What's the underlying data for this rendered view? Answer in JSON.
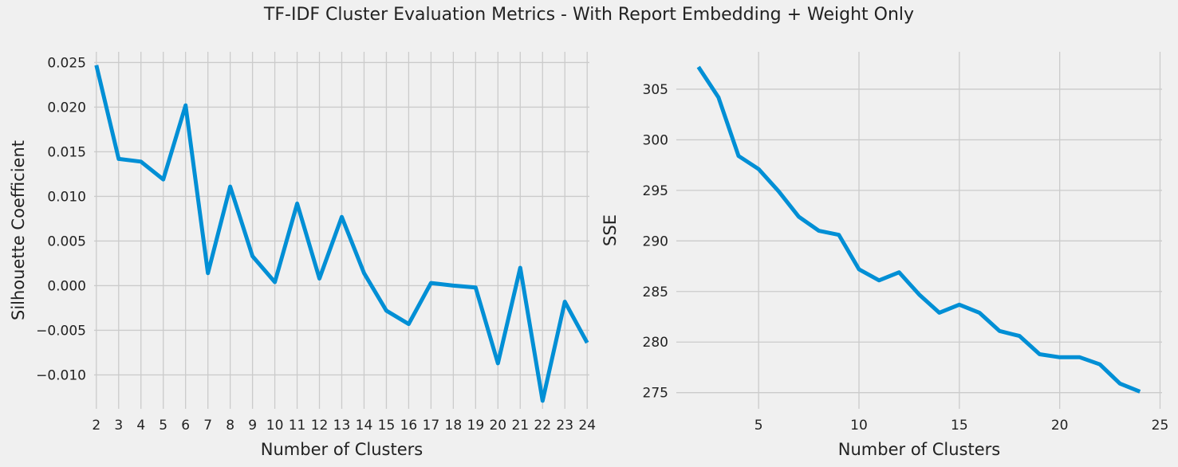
{
  "figure_title": "TF-IDF Cluster Evaluation Metrics - With Report Embedding + Weight Only",
  "colors": {
    "background": "#f0f0f0",
    "grid": "#cbcbcb",
    "line": "#008fd5",
    "text": "#222222"
  },
  "chart_data": [
    {
      "type": "line",
      "title": "",
      "xlabel": "Number of Clusters",
      "ylabel": "Silhouette Coefficient",
      "xlim": [
        1.9,
        24.1
      ],
      "ylim": [
        -0.0138,
        0.0262
      ],
      "x_ticks": [
        2,
        3,
        4,
        5,
        6,
        7,
        8,
        9,
        10,
        11,
        12,
        13,
        14,
        15,
        16,
        17,
        18,
        19,
        20,
        21,
        22,
        23,
        24
      ],
      "x_tick_labels": [
        "2",
        "3",
        "4",
        "5",
        "6",
        "7",
        "8",
        "9",
        "10",
        "11",
        "12",
        "13",
        "14",
        "15",
        "16",
        "17",
        "18",
        "19",
        "20",
        "21",
        "22",
        "23",
        "24"
      ],
      "y_ticks": [
        -0.01,
        -0.005,
        0.0,
        0.005,
        0.01,
        0.015,
        0.02,
        0.025
      ],
      "y_tick_labels": [
        "−0.010",
        "−0.005",
        "0.000",
        "0.005",
        "0.010",
        "0.015",
        "0.020",
        "0.025"
      ],
      "grid": true,
      "series": [
        {
          "x": [
            2,
            3,
            4,
            5,
            6,
            7,
            8,
            9,
            10,
            11,
            12,
            13,
            14,
            15,
            16,
            17,
            18,
            19,
            20,
            21,
            22,
            23,
            24
          ],
          "values": [
            0.0247,
            0.0142,
            0.0139,
            0.0119,
            0.0202,
            0.0014,
            0.0111,
            0.0033,
            0.0004,
            0.0092,
            0.0008,
            0.0077,
            0.0014,
            -0.0028,
            -0.0043,
            0.0003,
            0.0,
            -0.0002,
            -0.0087,
            0.002,
            -0.0129,
            -0.0018,
            -0.0064
          ]
        }
      ]
    },
    {
      "type": "line",
      "title": "",
      "xlabel": "Number of Clusters",
      "ylabel": "SSE",
      "xlim": [
        0.9,
        25.1
      ],
      "ylim": [
        273.4,
        308.7
      ],
      "x_ticks": [
        5,
        10,
        15,
        20,
        25
      ],
      "x_tick_labels": [
        "5",
        "10",
        "15",
        "20",
        "25"
      ],
      "y_ticks": [
        275,
        280,
        285,
        290,
        295,
        300,
        305
      ],
      "y_tick_labels": [
        "275",
        "280",
        "285",
        "290",
        "295",
        "300",
        "305"
      ],
      "grid": true,
      "series": [
        {
          "x": [
            2,
            3,
            4,
            5,
            6,
            7,
            8,
            9,
            10,
            11,
            12,
            13,
            14,
            15,
            16,
            17,
            18,
            19,
            20,
            21,
            22,
            23,
            24
          ],
          "values": [
            307.2,
            304.2,
            298.4,
            297.1,
            294.9,
            292.4,
            291.0,
            290.6,
            287.2,
            286.1,
            286.9,
            284.7,
            282.9,
            283.7,
            282.9,
            281.1,
            280.6,
            278.8,
            278.5,
            278.5,
            277.8,
            275.9,
            275.1
          ]
        }
      ]
    }
  ]
}
